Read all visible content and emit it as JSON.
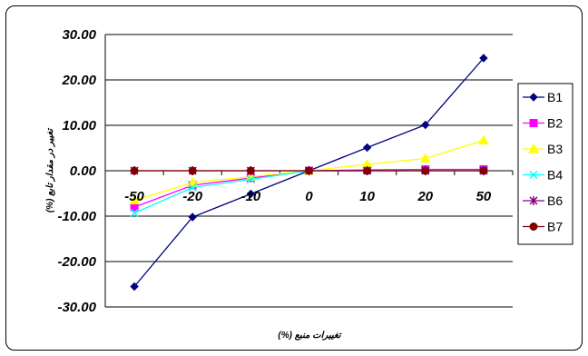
{
  "chart_data": {
    "type": "line",
    "categories": [
      "-50",
      "-20",
      "-10",
      "0",
      "10",
      "20",
      "50"
    ],
    "title": "",
    "xlabel": "تغییرات منبع (%)",
    "ylabel": "تغییر در مقدار تابع (%)",
    "ylim": [
      -30,
      30
    ],
    "yticks": [
      "30.00",
      "20.00",
      "10.00",
      "0.00",
      "-10.00",
      "-20.00",
      "-30.00"
    ],
    "grid": "horizontal",
    "legend_position": "right",
    "series": [
      {
        "name": "B1",
        "color": "#000080",
        "marker": "diamond",
        "values": [
          -25.5,
          -10.2,
          -5.1,
          0,
          5.1,
          10.1,
          24.8
        ]
      },
      {
        "name": "B2",
        "color": "#ff00ff",
        "marker": "square",
        "values": [
          -8.0,
          -3.2,
          -1.6,
          0,
          0.2,
          0.3,
          0.3
        ]
      },
      {
        "name": "B3",
        "color": "#ffff00",
        "marker": "triangle",
        "values": [
          -6.5,
          -2.6,
          -1.3,
          0,
          1.4,
          2.7,
          6.7
        ]
      },
      {
        "name": "B4",
        "color": "#00ffff",
        "marker": "x",
        "values": [
          -9.3,
          -3.7,
          -1.9,
          0,
          0,
          0,
          0
        ]
      },
      {
        "name": "B6",
        "color": "#800080",
        "marker": "star",
        "values": [
          0,
          0,
          0,
          0,
          0,
          0,
          0
        ]
      },
      {
        "name": "B7",
        "color": "#800000",
        "marker": "circle",
        "values": [
          0,
          0,
          0,
          0,
          0,
          0,
          0
        ]
      }
    ]
  }
}
